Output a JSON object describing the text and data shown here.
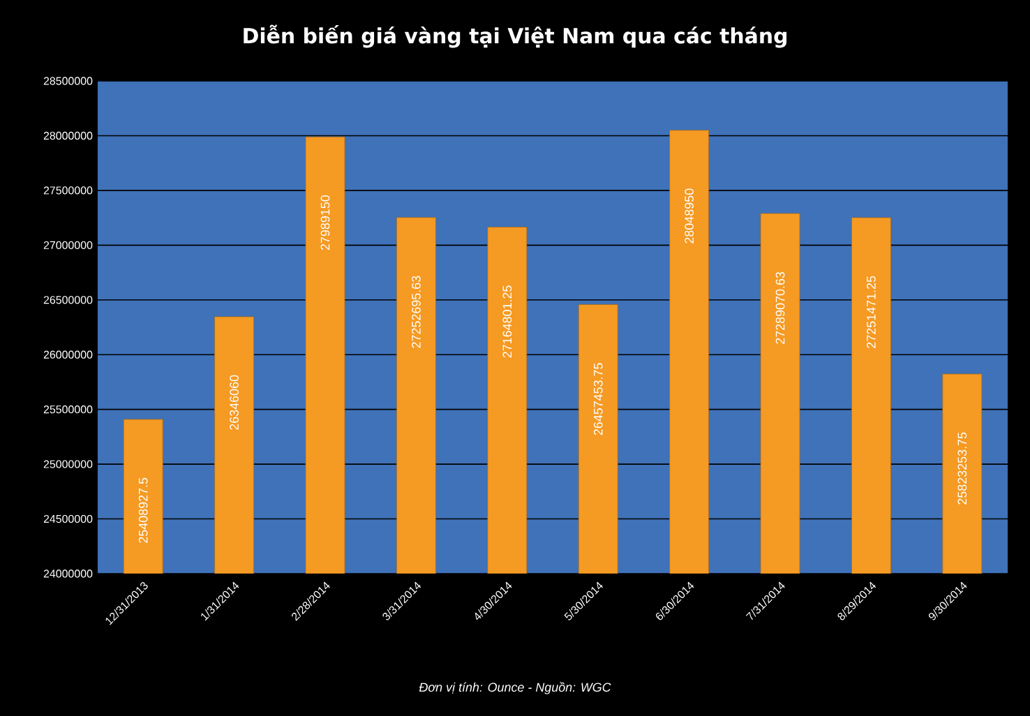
{
  "chart_data": {
    "type": "bar",
    "title": "Diễn biến giá vàng tại Việt Nam qua các tháng",
    "categories": [
      "12/31/2013",
      "1/31/2014",
      "2/28/2014",
      "3/31/2014",
      "4/30/2014",
      "5/30/2014",
      "6/30/2014",
      "7/31/2014",
      "8/29/2014",
      "9/30/2014"
    ],
    "values": [
      25408927.5,
      26346060,
      27989150,
      27252695.63,
      27164801.25,
      26457453.75,
      28048950,
      27289070.63,
      27251471.25,
      25823253.75
    ],
    "value_labels": [
      "25408927.5",
      "26346060",
      "27989150",
      "27252695.63",
      "27164801.25",
      "26457453.75",
      "28048950",
      "27289070.63",
      "27251471.25",
      "25823253.75"
    ],
    "color": "#f59a23",
    "ylim": [
      24000000,
      28500000
    ],
    "yticks": [
      24000000,
      24500000,
      25000000,
      25500000,
      26000000,
      26500000,
      27000000,
      27500000,
      28000000,
      28500000
    ],
    "grid": "y",
    "annotations": [
      "Đơn vị tính: Ounce  - Nguồn: WGC"
    ]
  }
}
